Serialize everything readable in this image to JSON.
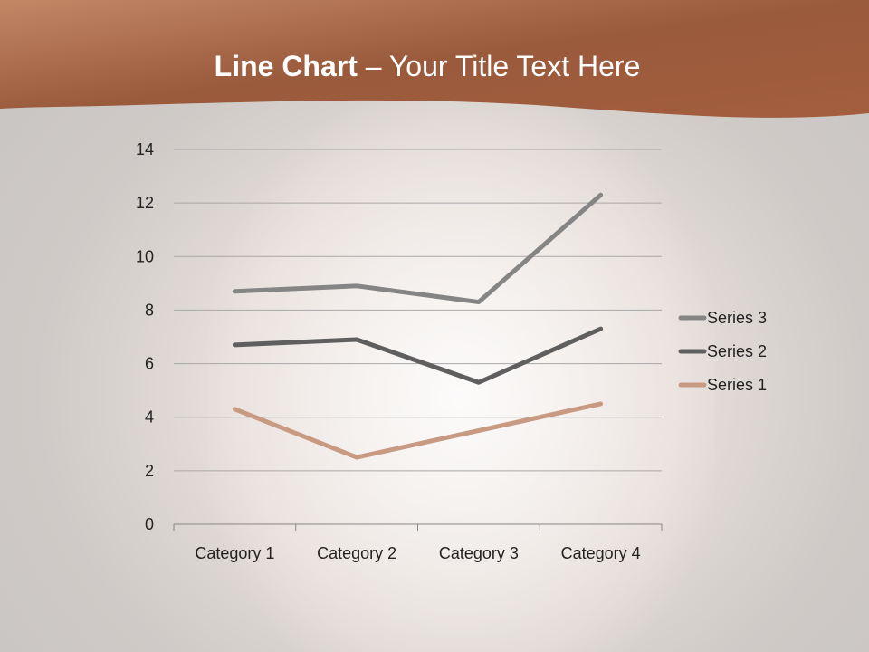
{
  "slide": {
    "title_bold": "Line Chart",
    "title_rest": " – Your Title Text Here"
  },
  "chart_data": {
    "type": "line",
    "stacked": true,
    "categories": [
      "Category 1",
      "Category 2",
      "Category 3",
      "Category 4"
    ],
    "series": [
      {
        "name": "Series 1",
        "values": [
          4.3,
          2.5,
          3.5,
          4.5
        ],
        "color": "#c89a82"
      },
      {
        "name": "Series 2",
        "values": [
          2.4,
          4.4,
          1.8,
          2.8
        ],
        "color": "#5f5f5f"
      },
      {
        "name": "Series 3",
        "values": [
          2,
          2,
          3,
          5
        ],
        "color": "#858585"
      }
    ],
    "ylim": [
      0,
      14
    ],
    "yticks": [
      "0",
      "2",
      "4",
      "6",
      "8",
      "10",
      "12",
      "14"
    ],
    "grid": true,
    "legend": "right"
  },
  "colors": {
    "header": "#a8603f"
  }
}
